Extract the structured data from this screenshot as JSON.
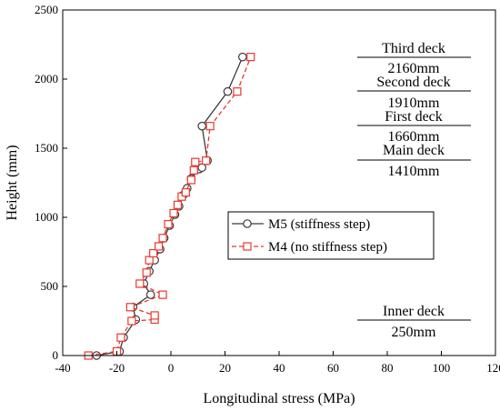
{
  "chart_data": {
    "type": "line",
    "xlabel": "Longitudinal stress (MPa)",
    "ylabel": "Height (mm)",
    "xlim": [
      -40,
      120
    ],
    "ylim": [
      0,
      2500
    ],
    "xticks": [
      "-40",
      "-20",
      "0",
      "20",
      "40",
      "60",
      "80",
      "100",
      "120"
    ],
    "yticks": [
      "0",
      "500",
      "1000",
      "1500",
      "2000",
      "2500"
    ],
    "legend_position": "center-right",
    "series": [
      {
        "name": "M5 (stiffness step)",
        "color": "#3a3a3a",
        "marker": "circle",
        "linestyle": "solid",
        "points": [
          [
            -27.5,
            0
          ],
          [
            -19,
            30
          ],
          [
            -17.5,
            130
          ],
          [
            -13,
            260
          ],
          [
            -14,
            350
          ],
          [
            -7.5,
            440
          ],
          [
            -10,
            520
          ],
          [
            -8,
            610
          ],
          [
            -6,
            690
          ],
          [
            -4,
            770
          ],
          [
            -2.5,
            850
          ],
          [
            -0.5,
            940
          ],
          [
            1.5,
            1020
          ],
          [
            3,
            1080
          ],
          [
            4.5,
            1160
          ],
          [
            6,
            1210
          ],
          [
            7.5,
            1280
          ],
          [
            10.5,
            1350
          ],
          [
            11.5,
            1360
          ],
          [
            13.5,
            1410
          ],
          [
            11.5,
            1660
          ],
          [
            21,
            1910
          ],
          [
            26.5,
            2160
          ]
        ]
      },
      {
        "name": "M4 (no stiffness step)",
        "color": "#e8392e",
        "marker": "square",
        "linestyle": "dashed",
        "points": [
          [
            -30.5,
            0
          ],
          [
            -20,
            30
          ],
          [
            -18.5,
            130
          ],
          [
            -14.5,
            250
          ],
          [
            -6,
            260
          ],
          [
            -6,
            290
          ],
          [
            -15,
            350
          ],
          [
            -3,
            440
          ],
          [
            -11.5,
            520
          ],
          [
            -9,
            600
          ],
          [
            -8,
            690
          ],
          [
            -6.5,
            740
          ],
          [
            -4.5,
            790
          ],
          [
            -3,
            850
          ],
          [
            -1,
            950
          ],
          [
            1,
            1030
          ],
          [
            2.5,
            1090
          ],
          [
            4,
            1150
          ],
          [
            5.5,
            1180
          ],
          [
            7.5,
            1270
          ],
          [
            8.5,
            1340
          ],
          [
            9,
            1400
          ],
          [
            13,
            1410
          ],
          [
            14.5,
            1660
          ],
          [
            24.5,
            1910
          ],
          [
            29.5,
            2160
          ]
        ]
      }
    ],
    "annotations": [
      {
        "name": "Third deck",
        "value": "2160mm"
      },
      {
        "name": "Second deck",
        "value": "1910mm"
      },
      {
        "name": "First deck",
        "value": "1660mm"
      },
      {
        "name": "Main deck",
        "value": "1410mm"
      },
      {
        "name": "Inner deck",
        "value": "250mm"
      }
    ]
  }
}
